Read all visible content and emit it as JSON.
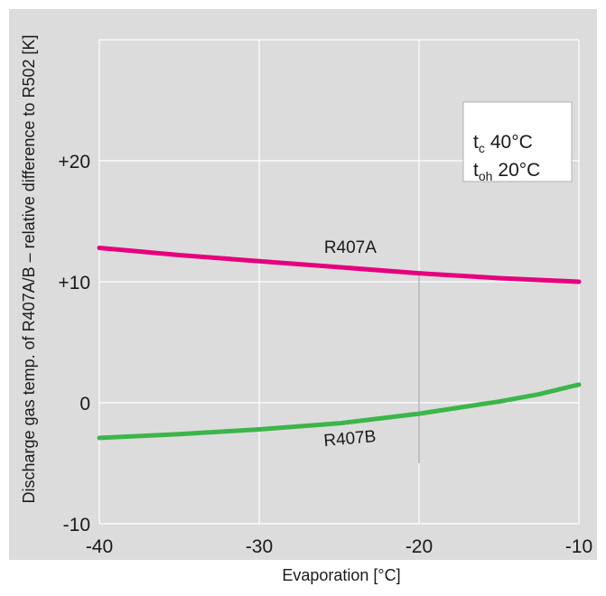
{
  "chart_data": {
    "type": "line",
    "title": "",
    "xlabel": "Evaporation  [°C]",
    "ylabel": "Discharge gas temp. of R407A/B – relative difference to R502  [K]",
    "xlim": [
      -40,
      -10
    ],
    "ylim": [
      -10,
      30
    ],
    "x_ticks": [
      -40,
      -30,
      -20,
      -10
    ],
    "x_tick_labels": [
      "-40",
      "-30",
      "-20",
      "-10"
    ],
    "y_ticks": [
      -10,
      0,
      10,
      20
    ],
    "y_tick_labels": [
      "-10",
      "0",
      "+10",
      "+20"
    ],
    "grid": true,
    "series": [
      {
        "name": "R407A",
        "color": "#e6007e",
        "x": [
          -40,
          -35,
          -30,
          -25,
          -20,
          -15,
          -10
        ],
        "y": [
          12.8,
          12.2,
          11.7,
          11.2,
          10.7,
          10.3,
          10.0
        ]
      },
      {
        "name": "R407B",
        "color": "#3cb54a",
        "x": [
          -40,
          -35,
          -30,
          -25,
          -20,
          -17.5,
          -15,
          -12.5,
          -10
        ],
        "y": [
          -2.9,
          -2.6,
          -2.2,
          -1.7,
          -0.9,
          -0.4,
          0.1,
          0.7,
          1.5
        ]
      }
    ],
    "legend_box": {
      "position": "top-right",
      "rows": [
        {
          "symbol": "t",
          "subscript": "c",
          "value": "40°C"
        },
        {
          "symbol": "t",
          "subscript": "oh",
          "value": "20°C"
        }
      ]
    }
  },
  "colors": {
    "background": "#dcdcdc",
    "grid": "#ffffff",
    "guide_line": "#b4b4b4"
  }
}
